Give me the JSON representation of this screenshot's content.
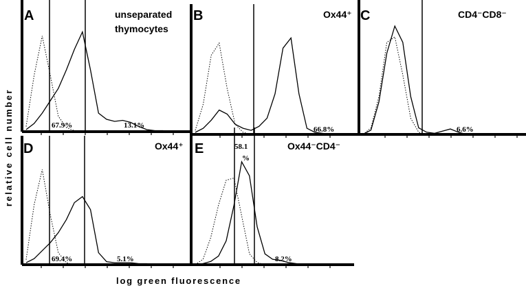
{
  "figure": {
    "ylabel": "relative cell number",
    "xlabel": "log green fluorescence"
  },
  "chart_data": [
    {
      "type": "line",
      "panel": "A",
      "title": [
        "unseparated",
        "thymocytes"
      ],
      "gate_labels": [
        "67.9%",
        "13.1%"
      ],
      "x": [
        0,
        0.05,
        0.1,
        0.15,
        0.2,
        0.25,
        0.3,
        0.35,
        0.4,
        0.45,
        0.5,
        0.55,
        0.6,
        0.65,
        0.7,
        0.75,
        0.8,
        0.85,
        0.9,
        0.95,
        1
      ],
      "series": [
        {
          "style": "solid",
          "values": [
            0.02,
            0.08,
            0.18,
            0.3,
            0.42,
            0.6,
            0.8,
            0.97,
            0.6,
            0.18,
            0.12,
            0.1,
            0.11,
            0.09,
            0.05,
            0.02,
            0.01,
            0.01,
            0,
            0,
            0
          ]
        },
        {
          "style": "dotted",
          "values": [
            0.05,
            0.55,
            0.93,
            0.55,
            0.15,
            0.04,
            0.01,
            0,
            0,
            0,
            0,
            0,
            0,
            0,
            0,
            0,
            0,
            0,
            0,
            0,
            0
          ]
        }
      ]
    },
    {
      "type": "line",
      "panel": "B",
      "title": [
        "Ox44⁺"
      ],
      "gate_labels": [
        "66.8%"
      ],
      "x": [
        0,
        0.05,
        0.1,
        0.15,
        0.2,
        0.25,
        0.3,
        0.35,
        0.4,
        0.45,
        0.5,
        0.55,
        0.6,
        0.65,
        0.7,
        0.75,
        0.8,
        0.85,
        0.9,
        0.95,
        1
      ],
      "series": [
        {
          "style": "solid",
          "values": [
            0.02,
            0.06,
            0.14,
            0.24,
            0.2,
            0.1,
            0.06,
            0.04,
            0.08,
            0.16,
            0.4,
            0.85,
            0.95,
            0.4,
            0.06,
            0.02,
            0.01,
            0,
            0,
            0,
            0
          ]
        },
        {
          "style": "dotted",
          "values": [
            0.04,
            0.3,
            0.78,
            0.9,
            0.45,
            0.1,
            0.02,
            0,
            0,
            0,
            0,
            0,
            0,
            0,
            0,
            0,
            0,
            0,
            0,
            0,
            0
          ]
        }
      ]
    },
    {
      "type": "line",
      "panel": "C",
      "title": [
        "CD4⁻CD8⁻"
      ],
      "gate_labels": [
        "6.6%"
      ],
      "x": [
        0,
        0.05,
        0.1,
        0.15,
        0.2,
        0.25,
        0.3,
        0.35,
        0.4,
        0.45,
        0.5,
        0.55,
        0.6,
        0.65,
        0.7,
        0.75,
        0.8,
        0.85,
        0.9,
        0.95,
        1
      ],
      "series": [
        {
          "style": "solid",
          "values": [
            0,
            0.04,
            0.3,
            0.75,
            1.0,
            0.85,
            0.35,
            0.06,
            0.02,
            0.01,
            0.03,
            0.05,
            0.02,
            0,
            0,
            0,
            0,
            0,
            0,
            0,
            0
          ]
        },
        {
          "style": "dotted",
          "values": [
            0,
            0.06,
            0.35,
            0.85,
            0.9,
            0.55,
            0.15,
            0.02,
            0,
            0,
            0,
            0,
            0,
            0,
            0,
            0,
            0,
            0,
            0,
            0,
            0
          ]
        }
      ]
    },
    {
      "type": "line",
      "panel": "D",
      "title": [
        "Ox44⁺"
      ],
      "gate_labels": [
        "69.4%",
        "5.1%"
      ],
      "x": [
        0,
        0.05,
        0.1,
        0.15,
        0.2,
        0.25,
        0.3,
        0.35,
        0.4,
        0.45,
        0.5,
        0.55,
        0.6,
        0.65,
        0.7,
        0.75,
        0.8,
        0.85,
        0.9,
        0.95,
        1
      ],
      "series": [
        {
          "style": "solid",
          "values": [
            0.02,
            0.06,
            0.14,
            0.22,
            0.32,
            0.45,
            0.62,
            0.68,
            0.55,
            0.12,
            0.03,
            0.02,
            0.02,
            0.02,
            0.01,
            0.01,
            0,
            0,
            0,
            0,
            0
          ]
        },
        {
          "style": "dotted",
          "values": [
            0.05,
            0.6,
            0.95,
            0.5,
            0.12,
            0.02,
            0,
            0,
            0,
            0,
            0,
            0,
            0,
            0,
            0,
            0,
            0,
            0,
            0,
            0,
            0
          ]
        }
      ]
    },
    {
      "type": "line",
      "panel": "E",
      "title": [
        "Ox44⁻CD4⁻"
      ],
      "gate_labels": [
        "58.1",
        "%",
        "8.2%"
      ],
      "x": [
        0,
        0.05,
        0.1,
        0.15,
        0.2,
        0.25,
        0.3,
        0.35,
        0.4,
        0.45,
        0.5,
        0.55,
        0.6,
        0.65,
        0.7,
        0.75,
        0.8,
        0.85,
        0.9,
        0.95,
        1
      ],
      "series": [
        {
          "style": "solid",
          "values": [
            0,
            0.01,
            0.03,
            0.08,
            0.22,
            0.55,
            0.95,
            0.82,
            0.35,
            0.1,
            0.05,
            0.04,
            0.02,
            0.01,
            0,
            0,
            0,
            0,
            0,
            0,
            0
          ]
        },
        {
          "style": "dotted",
          "values": [
            0,
            0.05,
            0.25,
            0.55,
            0.78,
            0.8,
            0.45,
            0.1,
            0.02,
            0,
            0,
            0,
            0,
            0,
            0,
            0,
            0,
            0,
            0,
            0,
            0
          ]
        }
      ]
    }
  ]
}
